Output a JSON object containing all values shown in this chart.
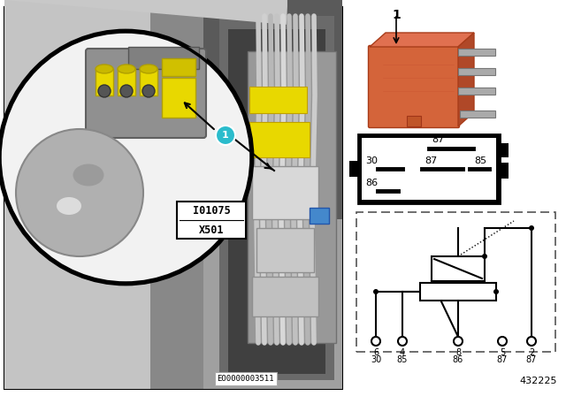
{
  "bg_color": "#ffffff",
  "left_bg": "#b8b8b8",
  "left_border": "#000000",
  "circle_bg": "#f0f0f0",
  "circle_border": "#000000",
  "callout_bg": "#2bbccc",
  "callout_text": "#ffffff",
  "annotation_bg": "#ffffff",
  "annotation_border": "#000000",
  "eo_label": "EO0000003511",
  "annotation_lines": [
    "I01075",
    "X501"
  ],
  "relay_orange": "#d4643a",
  "relay_dark": "#b04828",
  "relay_tab": "#c05530",
  "relay_metal": "#9a9a9a",
  "relay_metal_dark": "#707070",
  "pin_box_outer": "#1a1a1a",
  "pin_box_inner": "#ffffff",
  "schematic_border": "#555555",
  "schematic_fill": "#ffffff",
  "part_number": "432225",
  "item_number": "1",
  "yellow": "#e8d800",
  "dark_gray": "#707070",
  "mid_gray": "#909090",
  "light_gray": "#b8b8b8",
  "very_light_gray": "#d8d8d8",
  "wire_gray": "#c0c0c0",
  "blue_connector": "#4488cc"
}
